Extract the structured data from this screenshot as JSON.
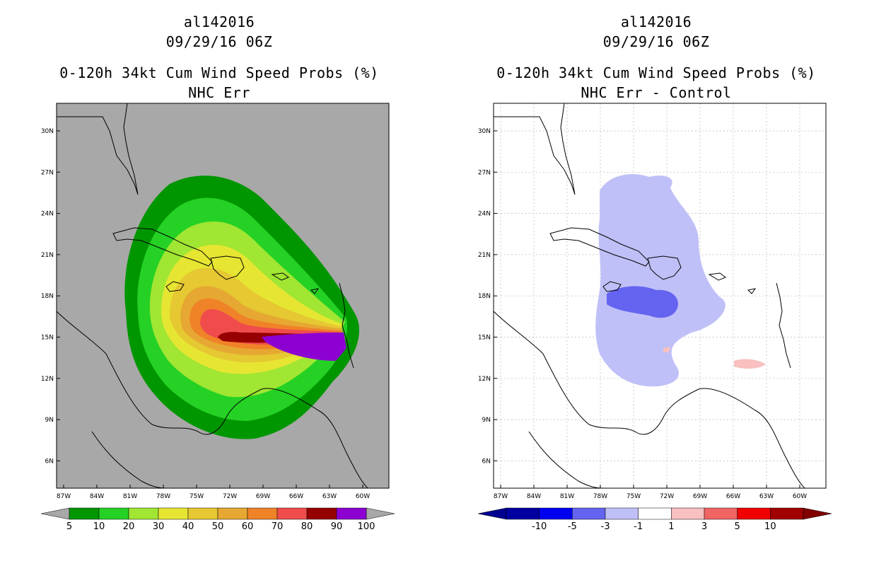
{
  "left": {
    "storm_id": "al142016",
    "datetime": "09/29/16 06Z",
    "product": "0-120h 34kt Cum Wind Speed Probs (%)",
    "subtitle": "NHC Err",
    "colorbar": {
      "labels": [
        "5",
        "10",
        "20",
        "30",
        "40",
        "50",
        "60",
        "70",
        "80",
        "90",
        "100"
      ],
      "colors": [
        "#009600",
        "#24d124",
        "#a0e632",
        "#e6e632",
        "#e6c832",
        "#e6a832",
        "#f08228",
        "#f04c4c",
        "#960000",
        "#8c00d2"
      ],
      "end_color": "#a8a8a8"
    },
    "background": "#a8a8a8"
  },
  "right": {
    "storm_id": "al142016",
    "datetime": "09/29/16 06Z",
    "product": "0-120h 34kt Cum Wind Speed Probs (%)",
    "subtitle": "NHC Err - Control",
    "colorbar": {
      "labels": [
        "-10",
        "-5",
        "-3",
        "-1",
        "1",
        "3",
        "5",
        "10"
      ],
      "colors": [
        "#0000a0",
        "#0000f0",
        "#6464f0",
        "#c0c0f8",
        "#ffffff",
        "#f8c0c0",
        "#f06464",
        "#f00000",
        "#a00000"
      ],
      "low_color": "#000090",
      "high_color": "#800000"
    },
    "background": "#ffffff"
  },
  "axes": {
    "lat_labels": [
      "30N",
      "27N",
      "24N",
      "21N",
      "18N",
      "15N",
      "12N",
      "9N",
      "6N"
    ],
    "lon_labels": [
      "87W",
      "84W",
      "81W",
      "78W",
      "75W",
      "72W",
      "69W",
      "66W",
      "63W",
      "60W"
    ]
  }
}
